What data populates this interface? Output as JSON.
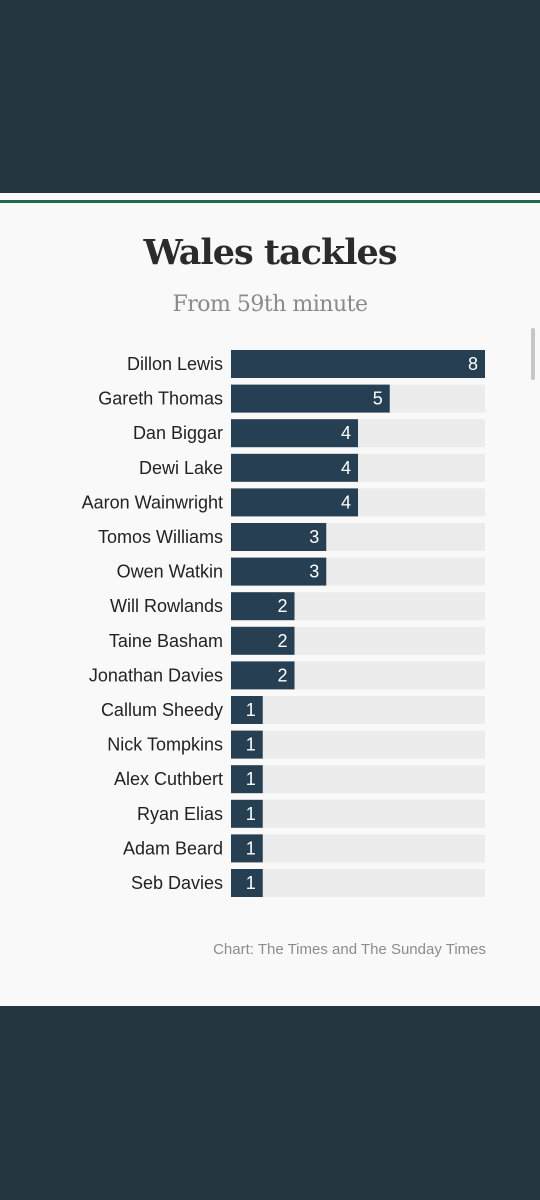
{
  "colors": {
    "bar": "#263f52",
    "track": "#ececec",
    "band": "#263640",
    "accent": "#1d6b4c"
  },
  "chart_data": {
    "type": "bar",
    "orientation": "horizontal",
    "title": "Wales tackles",
    "subtitle": "From 59th minute",
    "source": "Chart: The Times and The Sunday Times",
    "xlim": [
      0,
      8
    ],
    "grid": false,
    "categories": [
      "Dillon Lewis",
      "Gareth Thomas",
      "Dan Biggar",
      "Dewi Lake",
      "Aaron Wainwright",
      "Tomos Williams",
      "Owen Watkin",
      "Will Rowlands",
      "Taine Basham",
      "Jonathan Davies",
      "Callum Sheedy",
      "Nick Tompkins",
      "Alex Cuthbert",
      "Ryan Elias",
      "Adam Beard",
      "Seb Davies"
    ],
    "values": [
      8,
      5,
      4,
      4,
      4,
      3,
      3,
      2,
      2,
      2,
      1,
      1,
      1,
      1,
      1,
      1
    ]
  }
}
